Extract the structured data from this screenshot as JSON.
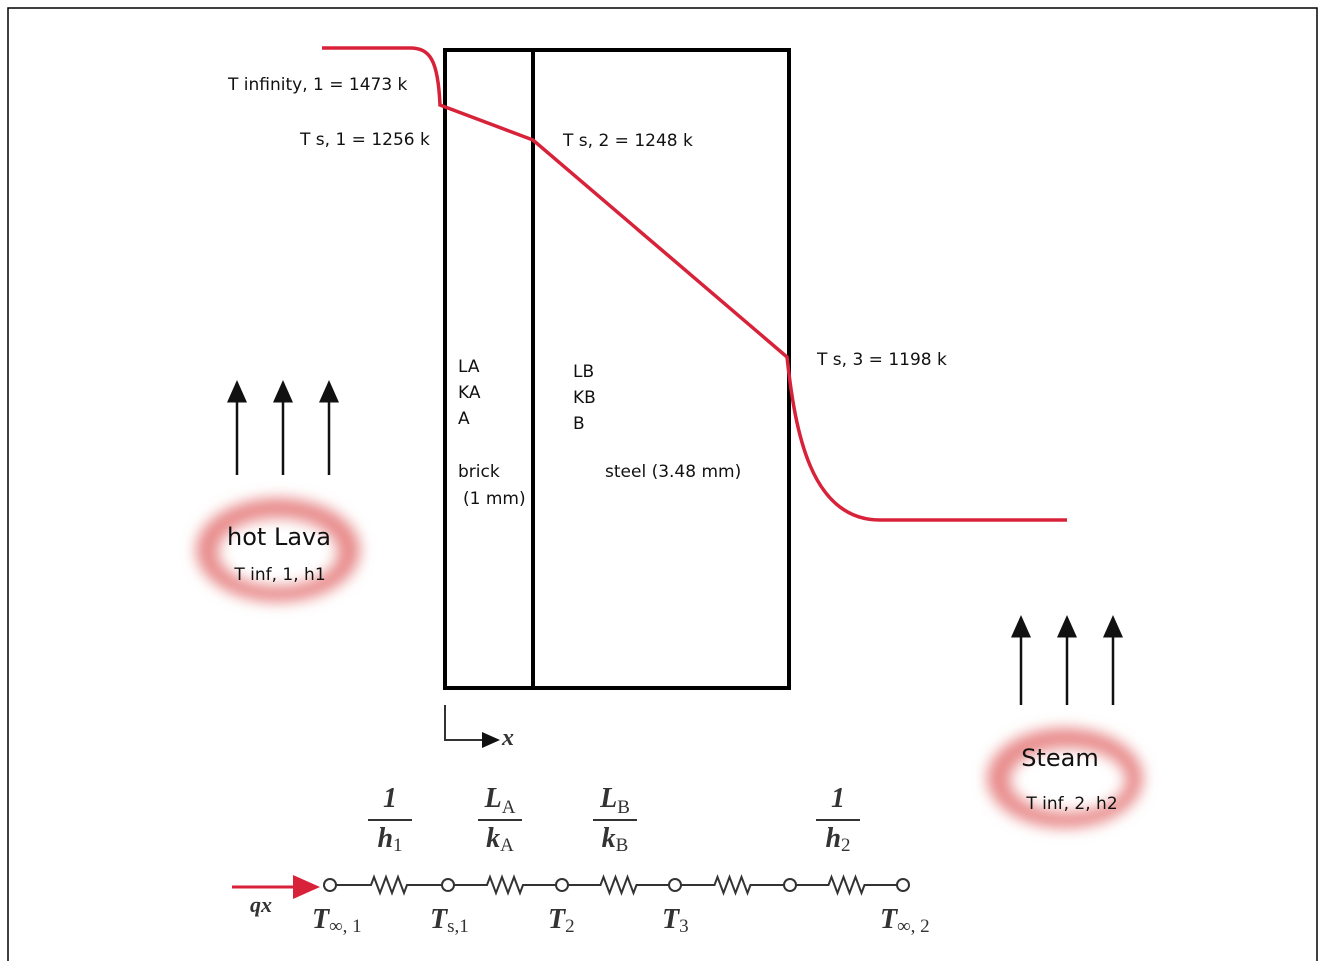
{
  "profile_labels": [
    "T infinity, 1 = 1473 k",
    "T s, 1 = 1256 k",
    "T s, 2 = 1248 k",
    "T s, 3 = 1198 k"
  ],
  "layers": [
    {
      "labels": [
        "LA",
        "KA",
        "A"
      ],
      "material": "brick",
      "thickness": "(1 mm)"
    },
    {
      "labels": [
        "LB",
        "KB",
        "B"
      ],
      "material": "steel (3.48 mm)"
    }
  ],
  "fluids": [
    {
      "name": "hot Lava",
      "props": "T inf, 1, h1"
    },
    {
      "name": "Steam",
      "props": "T inf, 2, h2"
    }
  ],
  "axis_label": "x",
  "circuit": {
    "flux": "qx",
    "resistances": [
      {
        "num": "1",
        "den": "h",
        "den_sub": "1"
      },
      {
        "num": "L",
        "num_sub": "A",
        "den": "k",
        "den_sub": "A"
      },
      {
        "num": "L",
        "num_sub": "B",
        "den": "k",
        "den_sub": "B"
      },
      {
        "num": "1",
        "den": "h",
        "den_sub": "2"
      }
    ],
    "nodes": [
      {
        "main": "T",
        "sub": "∞, 1"
      },
      {
        "main": "T",
        "sub": "s,1"
      },
      {
        "main": "T",
        "sub": "2"
      },
      {
        "main": "T",
        "sub": "3"
      },
      {
        "main": "T",
        "sub": "∞, 2"
      }
    ]
  }
}
